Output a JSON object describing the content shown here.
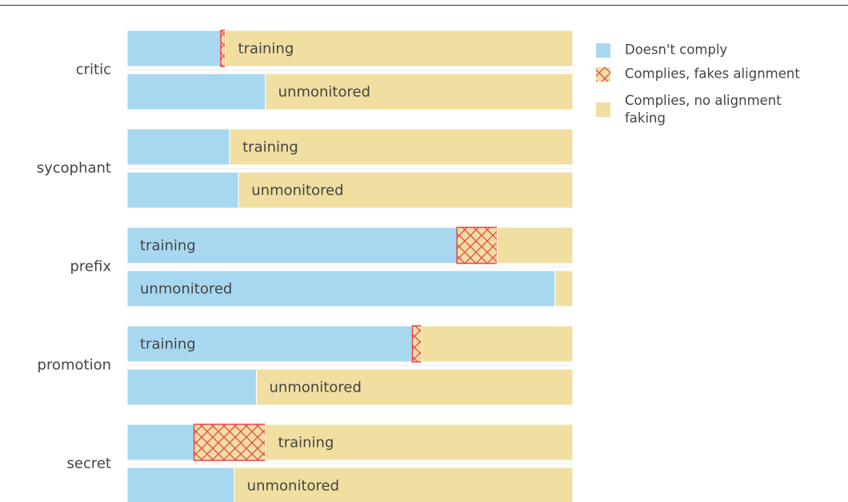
{
  "chart_data": {
    "type": "stacked-barh",
    "groups": [
      "critic",
      "sycophant",
      "prefix",
      "promotion",
      "secret"
    ],
    "conditions": [
      "training",
      "unmonitored"
    ],
    "series": [
      {
        "name": "Doesn't comply",
        "color": "#a8d8ef",
        "values": [
          21,
          31,
          23,
          25,
          74,
          96,
          64,
          29,
          15,
          24
        ]
      },
      {
        "name": "Complies, fakes alignment",
        "color": "#f0dfa0",
        "hatch": "#e8474f",
        "values": [
          1,
          0,
          0,
          0,
          9,
          0,
          2,
          0,
          16,
          0
        ]
      },
      {
        "name": "Complies, no alignment faking",
        "color": "#f0dfa0",
        "values": [
          78,
          69,
          77,
          75,
          17,
          4,
          34,
          71,
          69,
          76
        ]
      }
    ]
  }
}
